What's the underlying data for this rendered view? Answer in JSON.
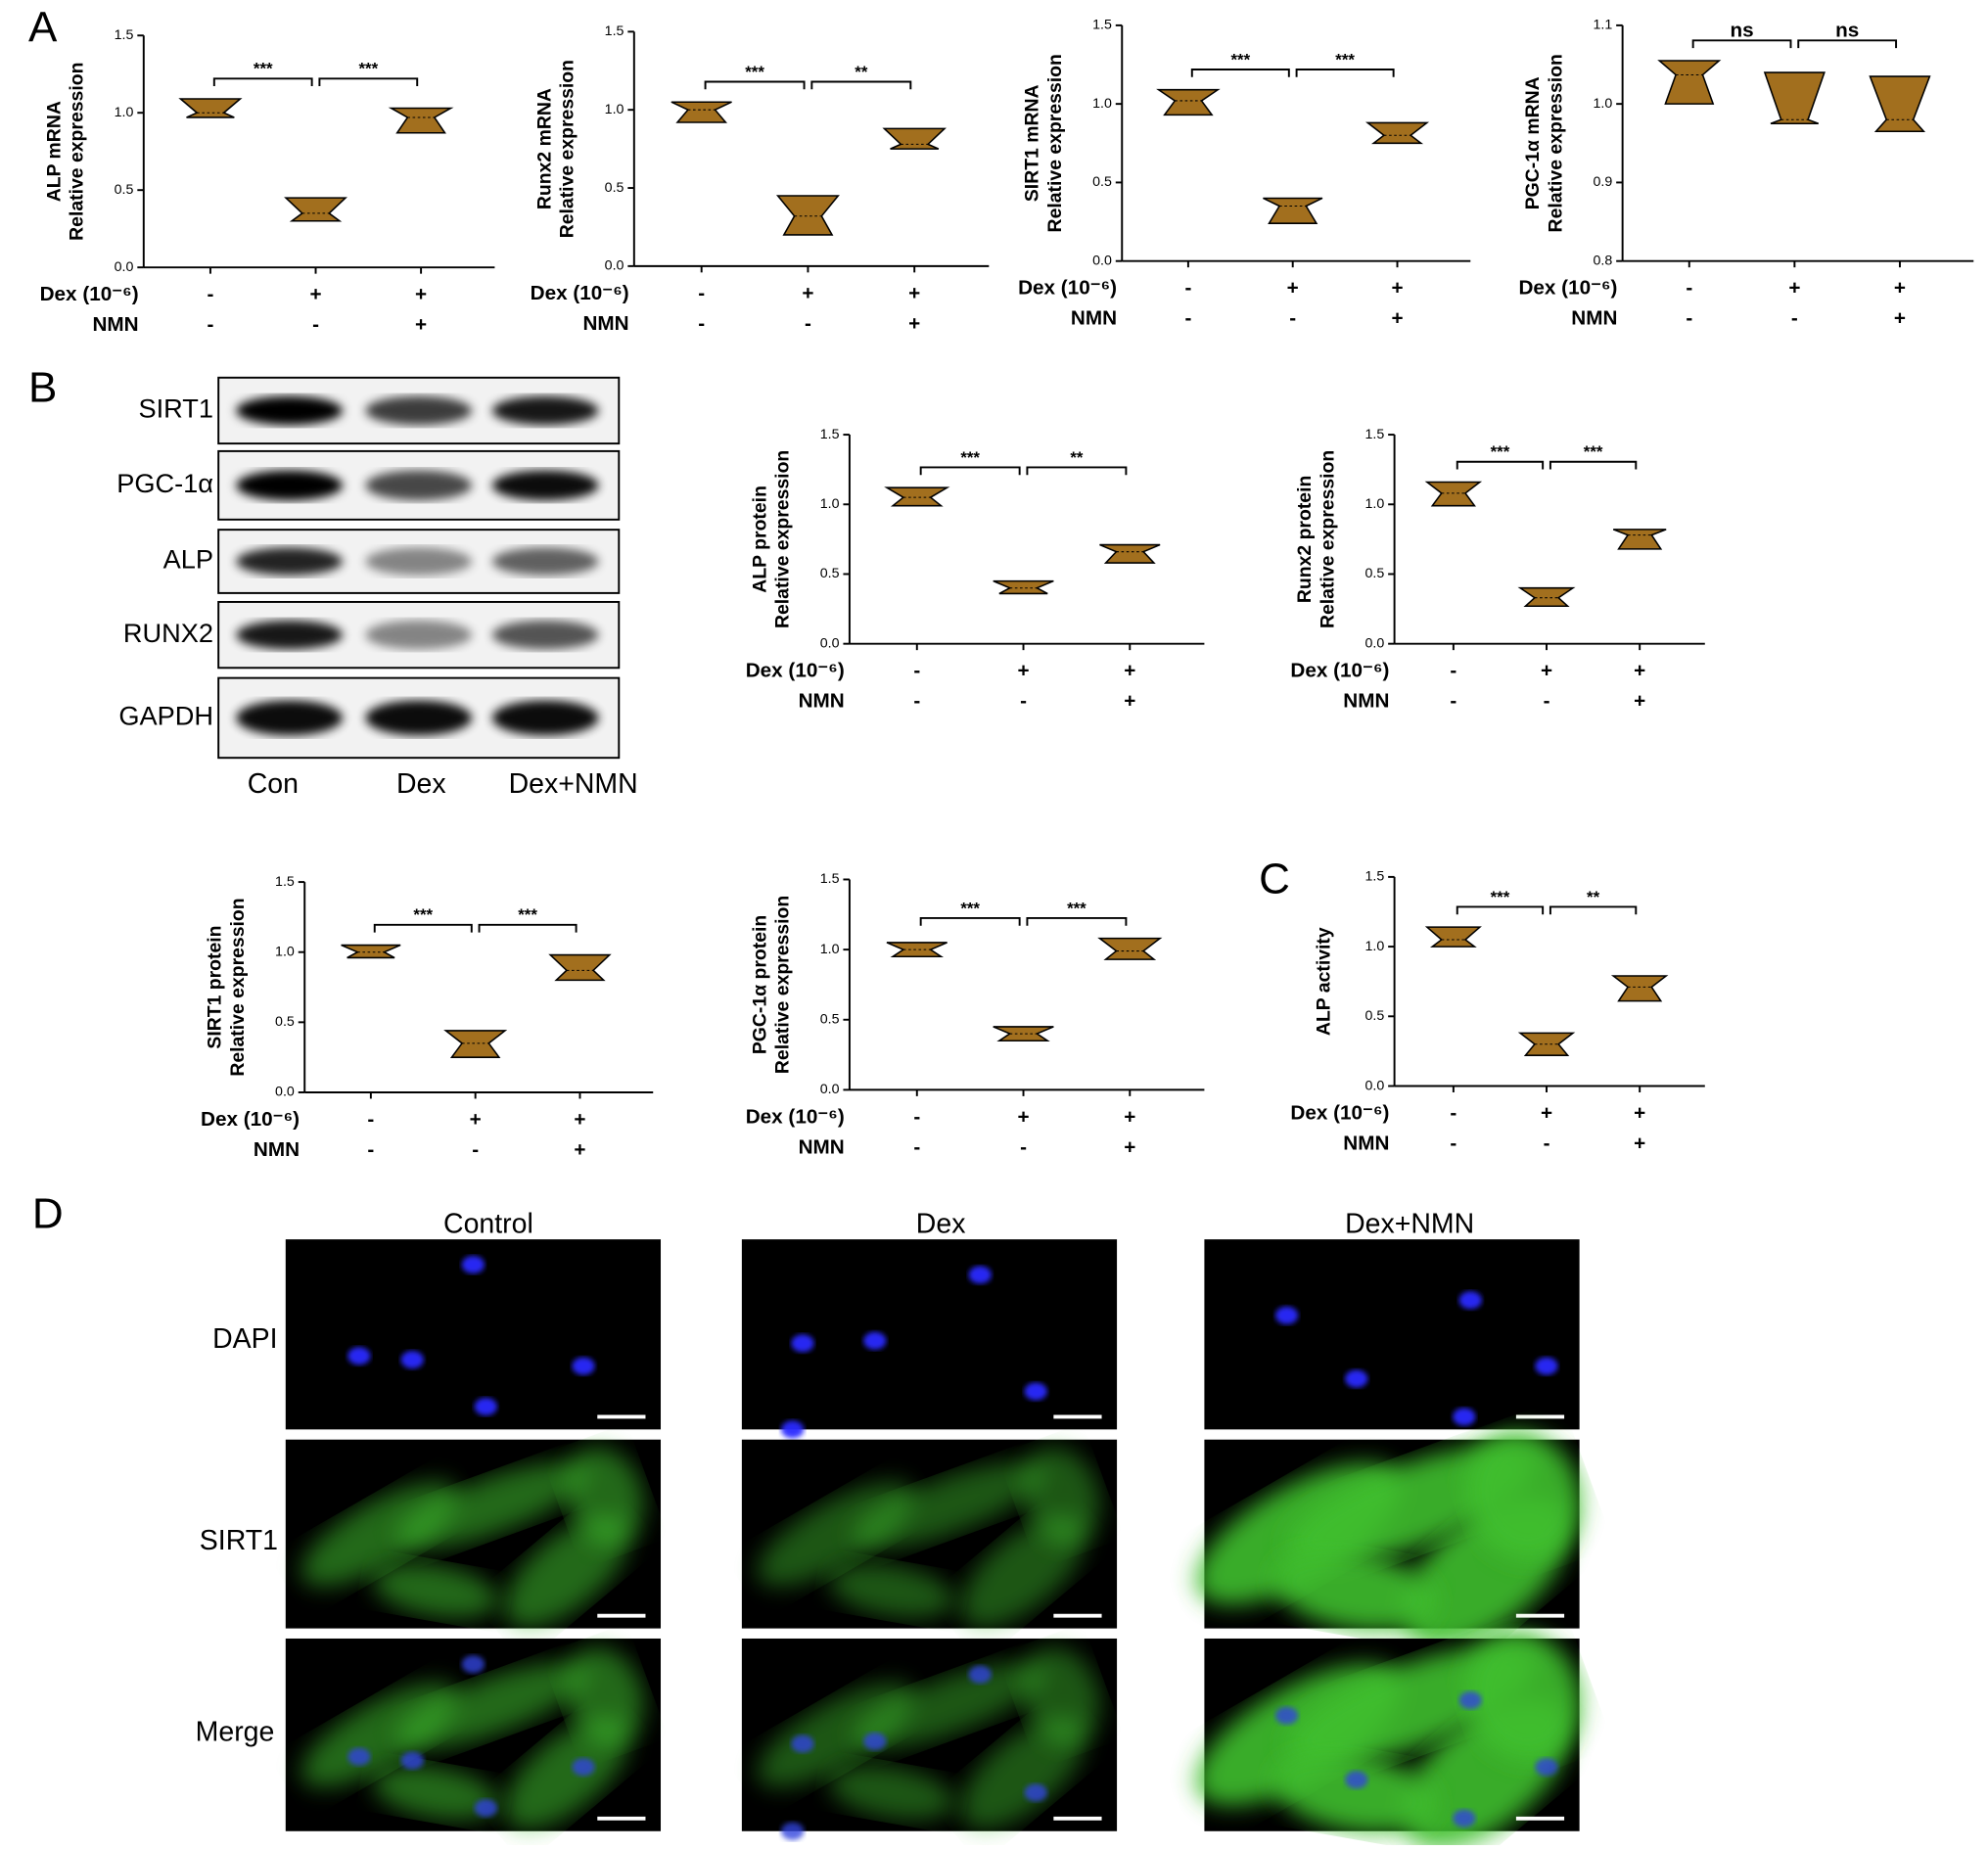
{
  "panel_labels": [
    "A",
    "B",
    "C",
    "D"
  ],
  "chart_data": [
    {
      "type": "violin",
      "ylabel": [
        "ALP mRNA",
        "Relative expression"
      ],
      "ylim": [
        0,
        1.5
      ],
      "yticks": [
        {
          "value": 0,
          "label": "0.0"
        },
        0.5,
        {
          "value": 1,
          "label": "1.0"
        },
        1.5
      ],
      "rows": [
        {
          "label": "Dex (10⁻⁶)",
          "marks": [
            "-",
            "+",
            "+"
          ]
        },
        {
          "label": "NMN",
          "marks": [
            "-",
            "-",
            "+"
          ]
        }
      ],
      "values": [
        [
          0.97,
          1.0,
          1.09
        ],
        [
          0.3,
          0.35,
          0.45
        ],
        [
          0.87,
          0.97,
          1.03
        ]
      ],
      "significance": [
        "***",
        "***"
      ],
      "color": "#a26f1e"
    },
    {
      "type": "violin",
      "ylabel": [
        "Runx2 mRNA",
        "Relative expression"
      ],
      "ylim": [
        0,
        1.5
      ],
      "yticks": [
        {
          "value": 0,
          "label": "0.0"
        },
        0.5,
        {
          "value": 1,
          "label": "1.0"
        },
        1.5
      ],
      "rows": [
        {
          "label": "Dex (10⁻⁶)",
          "marks": [
            "-",
            "+",
            "+"
          ]
        },
        {
          "label": "NMN",
          "marks": [
            "-",
            "-",
            "+"
          ]
        }
      ],
      "values": [
        [
          0.92,
          1.0,
          1.05
        ],
        [
          0.2,
          0.32,
          0.45
        ],
        [
          0.75,
          0.78,
          0.88
        ]
      ],
      "significance": [
        "***",
        "**"
      ],
      "color": "#a26f1e"
    },
    {
      "type": "violin",
      "ylabel": [
        "SIRT1 mRNA",
        "Relative expression"
      ],
      "ylim": [
        0,
        1.5
      ],
      "yticks": [
        {
          "value": 0,
          "label": "0.0"
        },
        0.5,
        {
          "value": 1,
          "label": "1.0"
        },
        1.5
      ],
      "rows": [
        {
          "label": "Dex (10⁻⁶)",
          "marks": [
            "-",
            "+",
            "+"
          ]
        },
        {
          "label": "NMN",
          "marks": [
            "-",
            "-",
            "+"
          ]
        }
      ],
      "values": [
        [
          0.93,
          1.02,
          1.09
        ],
        [
          0.24,
          0.35,
          0.4
        ],
        [
          0.75,
          0.8,
          0.88
        ]
      ],
      "significance": [
        "***",
        "***"
      ],
      "color": "#a26f1e"
    },
    {
      "type": "violin",
      "ylabel": [
        "PGC-1α mRNA",
        "Relative expression"
      ],
      "ylim": [
        0.8,
        1.1
      ],
      "yticks": [
        0.8,
        0.9,
        {
          "value": 1,
          "label": "1.0"
        },
        1.1
      ],
      "rows": [
        {
          "label": "Dex (10⁻⁶)",
          "marks": [
            "-",
            "+",
            "+"
          ]
        },
        {
          "label": "NMN",
          "marks": [
            "-",
            "-",
            "+"
          ]
        }
      ],
      "values": [
        [
          1.0,
          1.037,
          1.055
        ],
        [
          0.975,
          0.98,
          1.04
        ],
        [
          0.965,
          0.98,
          1.035
        ]
      ],
      "significance": [
        "ns",
        "ns"
      ],
      "color": "#a26f1e"
    },
    {
      "type": "violin",
      "ylabel": [
        "ALP protein",
        "Relative expression"
      ],
      "ylim": [
        0,
        1.5
      ],
      "yticks": [
        {
          "value": 0,
          "label": "0.0"
        },
        0.5,
        {
          "value": 1,
          "label": "1.0"
        },
        1.5
      ],
      "rows": [
        {
          "label": "Dex (10⁻⁶)",
          "marks": [
            "-",
            "+",
            "+"
          ]
        },
        {
          "label": "NMN",
          "marks": [
            "-",
            "-",
            "+"
          ]
        }
      ],
      "values": [
        [
          0.99,
          1.05,
          1.12
        ],
        [
          0.36,
          0.4,
          0.45
        ],
        [
          0.58,
          0.66,
          0.71
        ]
      ],
      "significance": [
        "***",
        "**"
      ],
      "color": "#a26f1e"
    },
    {
      "type": "violin",
      "ylabel": [
        "Runx2 protein",
        "Relative expression"
      ],
      "ylim": [
        0,
        1.5
      ],
      "yticks": [
        {
          "value": 0,
          "label": "0.0"
        },
        0.5,
        {
          "value": 1,
          "label": "1.0"
        },
        1.5
      ],
      "rows": [
        {
          "label": "Dex (10⁻⁶)",
          "marks": [
            "-",
            "+",
            "+"
          ]
        },
        {
          "label": "NMN",
          "marks": [
            "-",
            "-",
            "+"
          ]
        }
      ],
      "values": [
        [
          0.99,
          1.08,
          1.16
        ],
        [
          0.27,
          0.33,
          0.4
        ],
        [
          0.68,
          0.78,
          0.82
        ]
      ],
      "significance": [
        "***",
        "***"
      ],
      "color": "#a26f1e"
    },
    {
      "type": "violin",
      "ylabel": [
        "SIRT1 protein",
        "Relative expression"
      ],
      "ylim": [
        0,
        1.5
      ],
      "yticks": [
        {
          "value": 0,
          "label": "0.0"
        },
        0.5,
        {
          "value": 1,
          "label": "1.0"
        },
        1.5
      ],
      "rows": [
        {
          "label": "Dex (10⁻⁶)",
          "marks": [
            "-",
            "+",
            "+"
          ]
        },
        {
          "label": "NMN",
          "marks": [
            "-",
            "-",
            "+"
          ]
        }
      ],
      "values": [
        [
          0.96,
          1.0,
          1.05
        ],
        [
          0.25,
          0.35,
          0.44
        ],
        [
          0.8,
          0.87,
          0.98
        ]
      ],
      "significance": [
        "***",
        "***"
      ],
      "color": "#a26f1e"
    },
    {
      "type": "violin",
      "ylabel": [
        "PGC-1α protein",
        "Relative expression"
      ],
      "ylim": [
        0,
        1.5
      ],
      "yticks": [
        {
          "value": 0,
          "label": "0.0"
        },
        0.5,
        {
          "value": 1,
          "label": "1.0"
        },
        1.5
      ],
      "rows": [
        {
          "label": "Dex (10⁻⁶)",
          "marks": [
            "-",
            "+",
            "+"
          ]
        },
        {
          "label": "NMN",
          "marks": [
            "-",
            "-",
            "+"
          ]
        }
      ],
      "values": [
        [
          0.95,
          1.0,
          1.05
        ],
        [
          0.35,
          0.4,
          0.45
        ],
        [
          0.93,
          0.99,
          1.08
        ]
      ],
      "significance": [
        "***",
        "***"
      ],
      "color": "#a26f1e"
    },
    {
      "type": "violin",
      "ylabel": [
        "ALP activity"
      ],
      "ylim": [
        0,
        1.5
      ],
      "yticks": [
        {
          "value": 0,
          "label": "0.0"
        },
        0.5,
        {
          "value": 1,
          "label": "1.0"
        },
        1.5
      ],
      "rows": [
        {
          "label": "Dex (10⁻⁶)",
          "marks": [
            "-",
            "+",
            "+"
          ]
        },
        {
          "label": "NMN",
          "marks": [
            "-",
            "-",
            "+"
          ]
        }
      ],
      "values": [
        [
          1.0,
          1.05,
          1.14
        ],
        [
          0.22,
          0.3,
          0.38
        ],
        [
          0.61,
          0.71,
          0.79
        ]
      ],
      "significance": [
        "***",
        "**"
      ],
      "color": "#a26f1e"
    }
  ],
  "blot": {
    "proteins": [
      "SIRT1",
      "PGC-1α",
      "ALP",
      "RUNX2",
      "GAPDH"
    ],
    "lanes": [
      "Con",
      "Dex",
      "Dex+NMN"
    ]
  },
  "immunofluorescence": {
    "columns": [
      "Control",
      "Dex",
      "Dex+NMN"
    ],
    "rows": [
      "DAPI",
      "SIRT1",
      "Merge"
    ]
  }
}
